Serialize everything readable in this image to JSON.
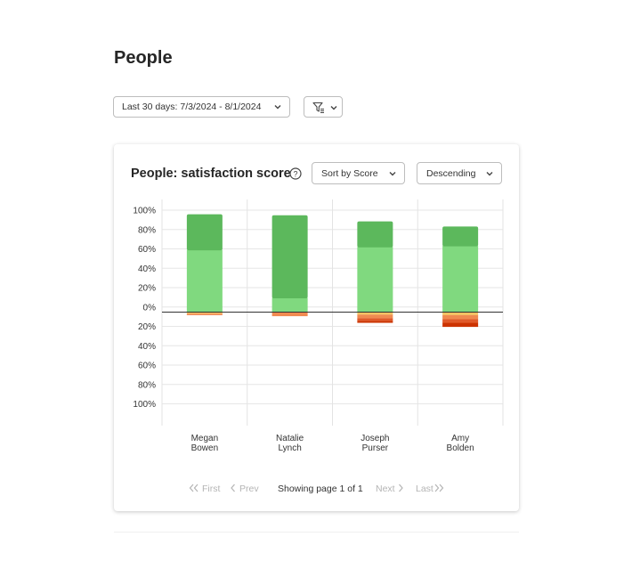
{
  "page": {
    "title": "People"
  },
  "date_filter": {
    "label": "Last 30 days: 7/3/2024 - 8/1/2024"
  },
  "card": {
    "title": "People: satisfaction score",
    "sort": "Sort by Score",
    "order": "Descending"
  },
  "pager": {
    "first": "First",
    "prev": "Prev",
    "status": "Showing page 1 of 1",
    "next": "Next",
    "last": "Last"
  },
  "colors": {
    "dark_green": "#5cb85c",
    "light_green": "#80d97f",
    "yellow": "#f3c262",
    "orange": "#f08a50",
    "red": "#e05a2a",
    "dark_red": "#cc3300",
    "zero_line": "#333333"
  },
  "chart_data": {
    "type": "bar",
    "stacked": true,
    "categories": [
      "Megan\nBowen",
      "Natalie\nLynch",
      "Joseph\nPurser",
      "Amy\nBolden"
    ],
    "y_tick_labels": [
      "100%",
      "80%",
      "60%",
      "40%",
      "20%",
      "0%",
      "20%",
      "40%",
      "60%",
      "80%",
      "100%"
    ],
    "ylim": [
      -100,
      100
    ],
    "positive_series": [
      {
        "values": [
          61,
          14,
          64,
          65
        ],
        "color": "#80d97f"
      },
      {
        "values": [
          35,
          81,
          25,
          19
        ],
        "color": "#5cb85c"
      }
    ],
    "negative_series": [
      {
        "values": [
          1.5,
          0,
          2.5,
          3
        ],
        "color": "#f3c262"
      },
      {
        "values": [
          1.5,
          4,
          3.5,
          4
        ],
        "color": "#f08a50"
      },
      {
        "values": [
          0,
          0,
          2.5,
          3.5
        ],
        "color": "#e05a2a"
      },
      {
        "values": [
          0,
          0,
          2,
          4
        ],
        "color": "#cc3300"
      }
    ],
    "grid": true
  }
}
